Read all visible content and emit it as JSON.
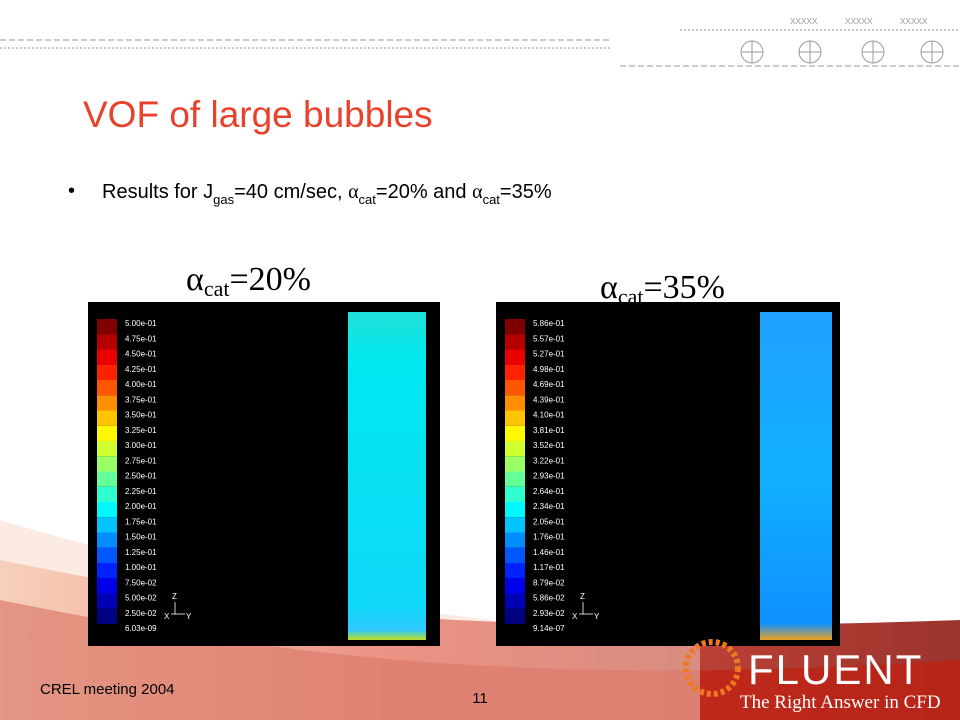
{
  "header": {
    "marks": [
      "xxxxx",
      "xxxxx",
      "xxxxx"
    ]
  },
  "title": "VOF of large bubbles",
  "bullet": {
    "parts": [
      "Results for J",
      "gas",
      "=40 cm/sec, ",
      "α",
      "cat",
      "=20% and ",
      "α",
      "cat",
      "=35%"
    ]
  },
  "panels": [
    {
      "label": [
        "α",
        "cat",
        "=20%"
      ],
      "colorbar": [
        "5.00e-01",
        "4.75e-01",
        "4.50e-01",
        "4.25e-01",
        "4.00e-01",
        "3.75e-01",
        "3.50e-01",
        "3.25e-01",
        "3.00e-01",
        "2.75e-01",
        "2.50e-01",
        "2.25e-01",
        "2.00e-01",
        "1.75e-01",
        "1.50e-01",
        "1.25e-01",
        "1.00e-01",
        "7.50e-02",
        "5.00e-02",
        "2.50e-02",
        "6.03e-09"
      ],
      "axes": [
        "Z",
        "X",
        "Y"
      ]
    },
    {
      "label": [
        "α",
        "cat",
        "=35%"
      ],
      "colorbar": [
        "5.86e-01",
        "5.57e-01",
        "5.27e-01",
        "4.98e-01",
        "4.69e-01",
        "4.39e-01",
        "4.10e-01",
        "3.81e-01",
        "3.52e-01",
        "3.22e-01",
        "2.93e-01",
        "2.64e-01",
        "2.34e-01",
        "2.05e-01",
        "1.76e-01",
        "1.46e-01",
        "1.17e-01",
        "8.79e-02",
        "5.86e-02",
        "2.93e-02",
        "9.14e-07"
      ],
      "axes": [
        "Z",
        "X",
        "Y"
      ]
    }
  ],
  "footer": {
    "meeting": "CREL meeting 2004",
    "page": "11"
  },
  "logo": {
    "name": "FLUENT",
    "tagline": "The Right Answer in CFD"
  }
}
